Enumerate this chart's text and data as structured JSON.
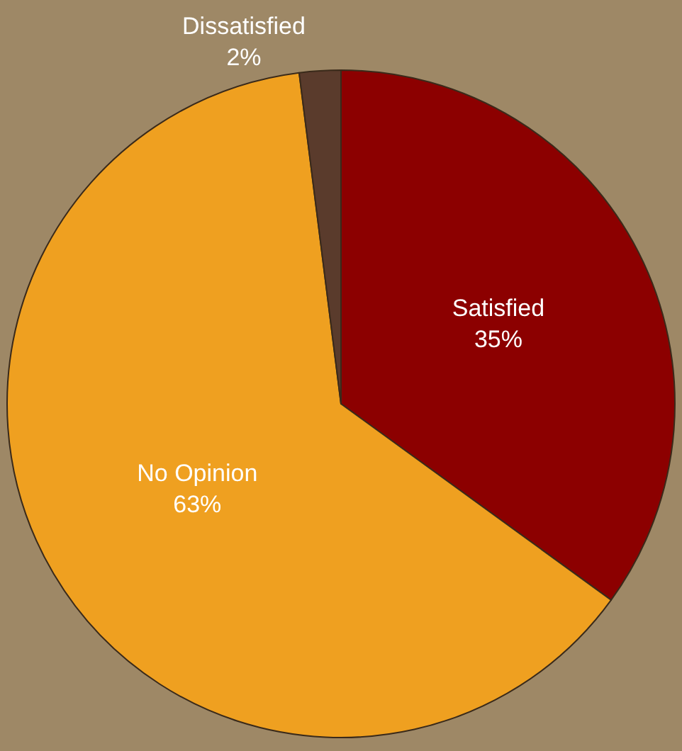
{
  "chart_data": {
    "type": "pie",
    "categories": [
      "Satisfied",
      "No Opinion",
      "Dissatisfied"
    ],
    "values": [
      35,
      63,
      2
    ],
    "value_labels": [
      "35%",
      "63%",
      "2%"
    ],
    "colors": [
      "#8c0000",
      "#efa020",
      "#5a3b2c"
    ],
    "legend": false
  }
}
